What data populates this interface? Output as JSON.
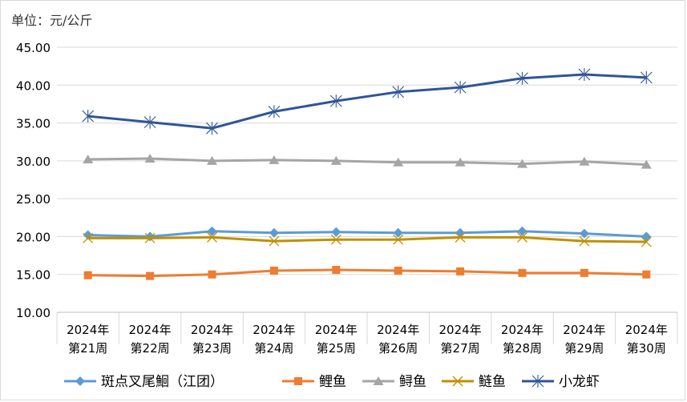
{
  "chart_data": {
    "type": "line",
    "unit_label": "单位：元/公斤",
    "categories": [
      [
        "2024年",
        "第21周"
      ],
      [
        "2024年",
        "第22周"
      ],
      [
        "2024年",
        "第23周"
      ],
      [
        "2024年",
        "第24周"
      ],
      [
        "2024年",
        "第25周"
      ],
      [
        "2024年",
        "第26周"
      ],
      [
        "2024年",
        "第27周"
      ],
      [
        "2024年",
        "第28周"
      ],
      [
        "2024年",
        "第29周"
      ],
      [
        "2024年",
        "第30周"
      ]
    ],
    "ylim": [
      10,
      45
    ],
    "yticks": [
      "10.00",
      "15.00",
      "20.00",
      "25.00",
      "30.00",
      "35.00",
      "40.00",
      "45.00"
    ],
    "grid": true,
    "legend_position": "bottom",
    "series": [
      {
        "name": "斑点叉尾鮰（江团）",
        "color": "#5b9bd5",
        "marker": "diamond",
        "values": [
          20.2,
          20.0,
          20.7,
          20.5,
          20.6,
          20.5,
          20.5,
          20.7,
          20.4,
          20.0
        ]
      },
      {
        "name": "鲤鱼",
        "color": "#ed7d31",
        "marker": "square",
        "values": [
          14.9,
          14.8,
          15.0,
          15.5,
          15.6,
          15.5,
          15.4,
          15.2,
          15.2,
          15.0
        ]
      },
      {
        "name": "鲟鱼",
        "color": "#a5a5a5",
        "marker": "triangle",
        "values": [
          30.2,
          30.3,
          30.0,
          30.1,
          30.0,
          29.8,
          29.8,
          29.6,
          29.9,
          29.5
        ]
      },
      {
        "name": "鲢鱼",
        "color": "#bf9000",
        "marker": "x",
        "values": [
          19.8,
          19.8,
          19.9,
          19.4,
          19.6,
          19.6,
          19.9,
          19.9,
          19.4,
          19.3
        ]
      },
      {
        "name": "小龙虾",
        "color": "#2f5597",
        "marker": "star",
        "values": [
          35.9,
          35.1,
          34.3,
          36.5,
          37.9,
          39.1,
          39.7,
          40.9,
          41.4,
          41.0
        ]
      }
    ]
  }
}
